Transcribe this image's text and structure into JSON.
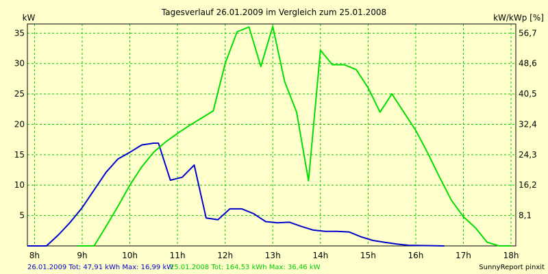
{
  "chart_data": {
    "type": "line",
    "title": "Tagesverlauf 26.01.2009 im Vergleich zum 25.01.2008",
    "ylabel_left": "kW",
    "ylabel_right": "kW/kWp [%]",
    "xlim": [
      7.85,
      18.1
    ],
    "ylim": [
      0,
      36.5
    ],
    "grid": true,
    "x_ticks": [
      {
        "value": 8,
        "label": "8h"
      },
      {
        "value": 9,
        "label": "9h"
      },
      {
        "value": 10,
        "label": "10h"
      },
      {
        "value": 11,
        "label": "11h"
      },
      {
        "value": 12,
        "label": "12h"
      },
      {
        "value": 13,
        "label": "13h"
      },
      {
        "value": 14,
        "label": "14h"
      },
      {
        "value": 15,
        "label": "15h"
      },
      {
        "value": 16,
        "label": "16h"
      },
      {
        "value": 17,
        "label": "17h"
      },
      {
        "value": 18,
        "label": "18h"
      }
    ],
    "y_ticks_left": [
      {
        "value": 5,
        "label": "5"
      },
      {
        "value": 10,
        "label": "10"
      },
      {
        "value": 15,
        "label": "15"
      },
      {
        "value": 20,
        "label": "20"
      },
      {
        "value": 25,
        "label": "25"
      },
      {
        "value": 30,
        "label": "30"
      },
      {
        "value": 35,
        "label": "35"
      }
    ],
    "y_ticks_right": [
      {
        "value": 5,
        "label": "8,1"
      },
      {
        "value": 10,
        "label": "16,2"
      },
      {
        "value": 15,
        "label": "24,3"
      },
      {
        "value": 20,
        "label": "32,4"
      },
      {
        "value": 25,
        "label": "40,5"
      },
      {
        "value": 30,
        "label": "48,6"
      },
      {
        "value": 35,
        "label": "56,7"
      }
    ],
    "series": [
      {
        "name": "",
        "color": "#0000cc",
        "points": [
          [
            7.85,
            0
          ],
          [
            8.25,
            0
          ],
          [
            8.5,
            1.8
          ],
          [
            8.75,
            3.9
          ],
          [
            9.0,
            6.3
          ],
          [
            9.25,
            9.2
          ],
          [
            9.5,
            12.1
          ],
          [
            9.75,
            14.3
          ],
          [
            10.0,
            15.4
          ],
          [
            10.25,
            16.6
          ],
          [
            10.5,
            16.9
          ],
          [
            10.6,
            16.9
          ],
          [
            10.85,
            10.8
          ],
          [
            11.1,
            11.3
          ],
          [
            11.35,
            13.3
          ],
          [
            11.6,
            4.6
          ],
          [
            11.85,
            4.3
          ],
          [
            12.1,
            6.1
          ],
          [
            12.35,
            6.1
          ],
          [
            12.6,
            5.3
          ],
          [
            12.85,
            4.0
          ],
          [
            13.1,
            3.8
          ],
          [
            13.35,
            3.9
          ],
          [
            13.6,
            3.2
          ],
          [
            13.85,
            2.6
          ],
          [
            14.1,
            2.4
          ],
          [
            14.35,
            2.4
          ],
          [
            14.6,
            2.3
          ],
          [
            14.85,
            1.5
          ],
          [
            15.1,
            0.9
          ],
          [
            15.35,
            0.6
          ],
          [
            15.6,
            0.3
          ],
          [
            15.85,
            0.1
          ],
          [
            16.6,
            0
          ]
        ]
      },
      {
        "name": "",
        "color": "#00dd00",
        "points": [
          [
            8.9,
            0
          ],
          [
            9.25,
            0
          ],
          [
            9.5,
            3.2
          ],
          [
            9.75,
            6.5
          ],
          [
            10.0,
            10.0
          ],
          [
            10.25,
            13.0
          ],
          [
            10.5,
            15.4
          ],
          [
            10.75,
            17.1
          ],
          [
            11.0,
            18.5
          ],
          [
            11.25,
            19.8
          ],
          [
            11.5,
            21.0
          ],
          [
            11.75,
            22.2
          ],
          [
            12.0,
            30.0
          ],
          [
            12.25,
            35.2
          ],
          [
            12.5,
            36.0
          ],
          [
            12.75,
            29.5
          ],
          [
            13.0,
            36.1
          ],
          [
            13.25,
            27.0
          ],
          [
            13.5,
            22.0
          ],
          [
            13.75,
            10.7
          ],
          [
            14.0,
            32.2
          ],
          [
            14.25,
            29.8
          ],
          [
            14.5,
            29.8
          ],
          [
            14.75,
            29.0
          ],
          [
            15.0,
            26.0
          ],
          [
            15.25,
            22.0
          ],
          [
            15.5,
            25.0
          ],
          [
            15.75,
            22.0
          ],
          [
            16.0,
            19.0
          ],
          [
            16.25,
            15.3
          ],
          [
            16.5,
            11.3
          ],
          [
            16.75,
            7.5
          ],
          [
            17.0,
            4.8
          ],
          [
            17.25,
            3.0
          ],
          [
            17.5,
            0.6
          ],
          [
            17.75,
            0
          ],
          [
            18.0,
            0
          ]
        ]
      }
    ]
  },
  "footer": {
    "series1_text": "26.01.2009 Tot: 47,91 kWh Max: 16,99 kW",
    "series2_text": "25.01.2008 Tot: 164,53 kWh Max: 36,46 kW",
    "credit": "SunnyReport pinxit"
  },
  "colors": {
    "background": "#ffffcc",
    "grid": "#00cc00",
    "series1": "#0000cc",
    "series2": "#00dd00"
  }
}
